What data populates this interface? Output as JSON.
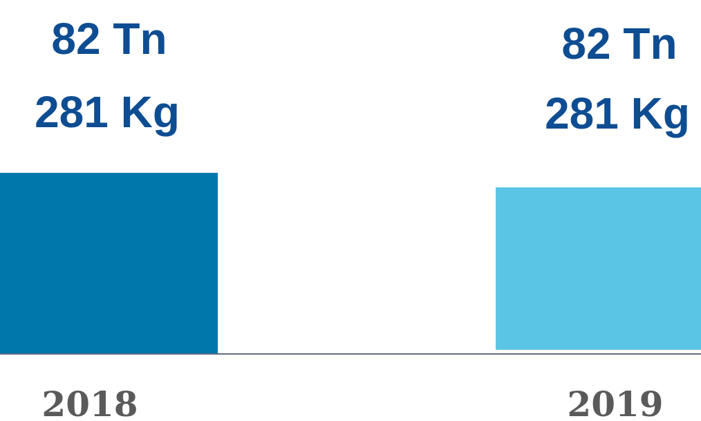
{
  "chart_data": {
    "type": "bar",
    "categories": [
      "2018",
      "2019"
    ],
    "data_labels": [
      {
        "line1": "82 Tn",
        "line2": "281 Kg"
      },
      {
        "line1": "82 Tn",
        "line2": "281 Kg"
      }
    ],
    "values": [
      82.281,
      82.281
    ],
    "colors": [
      "#0077aa",
      "#5bc5e5"
    ],
    "label_color": "#0e4d92",
    "tick_color": "#5a5a5a",
    "axis_color": "#2a3b5c",
    "grid": false,
    "legend": "none"
  }
}
